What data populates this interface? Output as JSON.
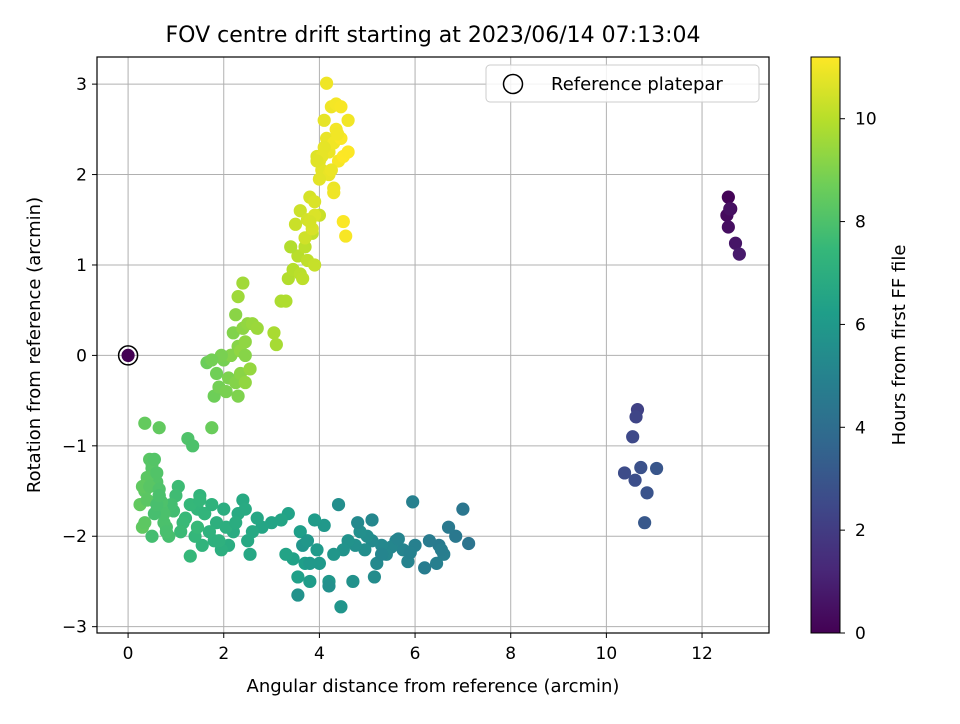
{
  "chart_data": {
    "type": "scatter",
    "title": "FOV centre drift starting at 2023/06/14 07:13:04",
    "xlabel": "Angular distance from reference (arcmin)",
    "ylabel": "Rotation from reference (arcmin)",
    "xlim": [
      -0.65,
      13.4
    ],
    "ylim": [
      -3.07,
      3.3
    ],
    "xticks": [
      0,
      2,
      4,
      6,
      8,
      10,
      12
    ],
    "yticks": [
      -3,
      -2,
      -1,
      0,
      1,
      2,
      3
    ],
    "grid": true,
    "legend": {
      "position": "top-right",
      "entries": [
        "Reference platepar"
      ]
    },
    "reference_point": {
      "x": 0,
      "y": 0
    },
    "colorbar": {
      "label": "Hours from first FF file",
      "colormap": "viridis",
      "range": [
        0,
        11.2
      ],
      "ticks": [
        0,
        2,
        4,
        6,
        8,
        10
      ]
    },
    "colormap_stops": [
      "#440154",
      "#482878",
      "#3e4989",
      "#31688e",
      "#26828e",
      "#1f9e89",
      "#35b779",
      "#6ece58",
      "#b5de2b",
      "#fde725"
    ],
    "series": [
      {
        "x": [
          12.55,
          12.6,
          12.52,
          12.55,
          12.58,
          12.7,
          12.78
        ],
        "y": [
          1.75,
          1.62,
          1.55,
          1.42,
          1.62,
          1.24,
          1.12
        ],
        "c": [
          0.1,
          0.2,
          0.3,
          0.4,
          0.5,
          0.65,
          0.8
        ]
      },
      {
        "x": [
          10.65,
          10.62,
          10.55,
          10.38,
          10.6,
          10.72,
          10.85,
          11.05,
          10.8
        ],
        "y": [
          -0.6,
          -0.68,
          -0.9,
          -1.3,
          -1.38,
          -1.24,
          -1.52,
          -1.25,
          -1.85
        ],
        "c": [
          2.2,
          2.35,
          2.5,
          2.6,
          2.7,
          2.8,
          2.9,
          3.0,
          3.1
        ]
      },
      {
        "x": [
          7.12,
          7.0,
          6.85,
          6.7,
          6.5,
          6.3,
          6.2,
          6.6,
          6.45,
          5.95,
          5.85,
          5.75,
          5.6,
          5.5,
          5.4,
          5.3,
          5.2,
          5.1,
          5.15,
          5.0,
          4.95,
          4.85,
          4.75,
          4.7,
          4.6,
          4.5,
          4.45,
          4.3,
          4.2,
          4.1,
          4.0,
          3.95,
          3.9,
          3.8,
          3.7,
          3.6,
          3.55,
          3.45,
          3.35,
          3.3,
          3.2,
          3.55,
          3.65,
          3.75,
          3.8,
          4.2,
          4.4,
          4.8,
          5.1,
          5.3,
          6.0,
          5.9,
          5.65,
          6.55
        ],
        "y": [
          -2.08,
          -1.7,
          -2.0,
          -1.9,
          -2.1,
          -2.05,
          -2.35,
          -2.2,
          -2.3,
          -1.62,
          -2.28,
          -2.15,
          -2.05,
          -2.12,
          -2.2,
          -2.1,
          -2.3,
          -2.05,
          -2.45,
          -2.0,
          -2.15,
          -1.95,
          -2.1,
          -2.5,
          -2.05,
          -2.15,
          -2.78,
          -2.2,
          -2.5,
          -1.88,
          -2.3,
          -2.15,
          -1.82,
          -2.5,
          -2.3,
          -1.95,
          -2.45,
          -2.25,
          -1.75,
          -2.2,
          -1.82,
          -2.65,
          -2.1,
          -2.05,
          -2.3,
          -2.55,
          -1.65,
          -1.85,
          -1.82,
          -2.2,
          -2.1,
          -2.18,
          -2.03,
          -2.15
        ],
        "c": [
          4.3,
          4.4,
          4.5,
          4.55,
          4.6,
          4.65,
          4.7,
          4.8,
          4.85,
          4.9,
          5.0,
          5.05,
          5.1,
          5.15,
          5.2,
          5.25,
          5.3,
          5.35,
          5.4,
          5.45,
          5.5,
          5.55,
          5.6,
          5.65,
          5.7,
          5.75,
          5.8,
          5.85,
          5.9,
          5.95,
          6.0,
          6.05,
          6.1,
          6.15,
          6.2,
          6.25,
          6.3,
          6.35,
          6.4,
          6.45,
          6.5,
          5.7,
          5.8,
          5.9,
          6.0,
          5.6,
          5.5,
          5.3,
          5.2,
          5.1,
          4.9,
          4.95,
          5.05,
          4.75
        ]
      },
      {
        "x": [
          3.0,
          2.8,
          2.7,
          2.55,
          2.5,
          2.4,
          2.3,
          2.2,
          2.1,
          2.0,
          1.95,
          1.85,
          1.8,
          1.7,
          1.6,
          1.55,
          1.5,
          1.45,
          1.4,
          1.3,
          1.2,
          1.15,
          1.1,
          1.05,
          1.0,
          0.95,
          0.9,
          0.85,
          0.8,
          0.75,
          0.7,
          0.65,
          0.6,
          0.55,
          0.5,
          0.45,
          0.4,
          0.35,
          0.3,
          0.25,
          0.3,
          0.35,
          0.4,
          0.45,
          0.5,
          0.55,
          0.6,
          0.65,
          0.7,
          0.75,
          0.8,
          0.5,
          0.55,
          0.6,
          0.65,
          1.25,
          1.35,
          1.45,
          1.5,
          1.6,
          1.75,
          1.9,
          2.05,
          2.25,
          2.45,
          2.6,
          1.3,
          0.35,
          0.65
        ],
        "y": [
          -1.85,
          -1.9,
          -1.8,
          -2.2,
          -2.05,
          -1.6,
          -1.75,
          -1.95,
          -2.1,
          -1.7,
          -2.15,
          -1.85,
          -2.05,
          -1.95,
          -1.75,
          -2.1,
          -1.55,
          -1.7,
          -2.0,
          -1.65,
          -1.8,
          -1.85,
          -1.95,
          -1.45,
          -1.55,
          -1.72,
          -1.65,
          -2.0,
          -1.9,
          -1.85,
          -1.7,
          -1.55,
          -1.4,
          -1.3,
          -1.25,
          -1.15,
          -1.35,
          -1.5,
          -1.45,
          -1.65,
          -1.9,
          -1.85,
          -1.6,
          -1.45,
          -1.2,
          -1.15,
          -1.3,
          -1.48,
          -1.62,
          -1.75,
          -1.95,
          -2.0,
          -1.75,
          -1.65,
          -1.55,
          -0.92,
          -1.0,
          -1.9,
          -1.6,
          -1.75,
          -1.65,
          -2.05,
          -1.9,
          -1.85,
          -1.7,
          -1.95,
          -2.22,
          -0.75,
          -0.8
        ],
        "c": [
          6.5,
          6.55,
          6.6,
          6.65,
          6.7,
          6.75,
          6.8,
          6.85,
          6.9,
          6.95,
          7.0,
          7.05,
          7.1,
          7.15,
          7.2,
          7.25,
          7.3,
          7.35,
          7.4,
          7.45,
          7.5,
          7.55,
          7.6,
          7.65,
          7.7,
          7.75,
          7.8,
          7.85,
          7.9,
          7.95,
          8.0,
          8.05,
          8.1,
          8.15,
          8.2,
          8.25,
          8.3,
          8.35,
          8.4,
          8.45,
          8.4,
          8.35,
          8.3,
          8.25,
          8.2,
          8.15,
          8.1,
          8.05,
          8.0,
          7.95,
          7.9,
          7.8,
          7.85,
          7.9,
          7.95,
          8.05,
          8.0,
          7.5,
          7.4,
          7.3,
          7.2,
          7.1,
          7.0,
          6.9,
          6.8,
          6.7,
          7.45,
          8.5,
          8.45
        ]
      },
      {
        "x": [
          1.75,
          1.65,
          1.8,
          1.85,
          1.9,
          2.0,
          2.05,
          2.1,
          2.15,
          2.2,
          2.25,
          2.3,
          2.35,
          2.4,
          2.45,
          2.5,
          2.55,
          2.6,
          2.7,
          2.3,
          2.4,
          2.25,
          2.15,
          2.35,
          2.45,
          1.95,
          1.75,
          3.1,
          3.05,
          3.2,
          3.3,
          3.35,
          3.45,
          3.55,
          3.6,
          3.7,
          3.75,
          3.85,
          3.9,
          4.0,
          2.45,
          2.3,
          3.4,
          3.65
        ],
        "y": [
          -0.8,
          -0.08,
          -0.45,
          -0.2,
          -0.35,
          -0.05,
          -0.4,
          -0.25,
          0.0,
          0.25,
          -0.3,
          0.1,
          -0.2,
          0.3,
          0.15,
          0.35,
          -0.15,
          0.35,
          0.3,
          0.65,
          0.8,
          0.45,
          0.0,
          0.05,
          -0.3,
          0.0,
          -0.05,
          0.12,
          0.25,
          0.6,
          0.6,
          0.85,
          0.95,
          1.1,
          0.9,
          1.2,
          1.05,
          1.35,
          1.0,
          1.55,
          0.0,
          -0.45,
          1.2,
          0.85
        ],
        "c": [
          8.6,
          8.65,
          8.7,
          8.75,
          8.8,
          8.85,
          8.9,
          8.95,
          9.0,
          9.05,
          9.1,
          9.15,
          9.2,
          9.25,
          9.3,
          9.35,
          9.4,
          9.45,
          9.5,
          9.55,
          9.6,
          9.2,
          9.1,
          9.3,
          9.35,
          8.9,
          8.8,
          9.7,
          9.75,
          9.8,
          9.85,
          9.9,
          9.95,
          10.0,
          10.05,
          10.1,
          10.15,
          10.2,
          10.25,
          10.3,
          9.15,
          9.0,
          9.9,
          10.1
        ]
      },
      {
        "x": [
          3.5,
          3.6,
          3.7,
          3.75,
          3.8,
          3.85,
          3.9,
          3.95,
          4.0,
          4.05,
          4.1,
          4.15,
          4.2,
          4.25,
          4.3,
          4.35,
          4.4,
          4.45,
          4.5,
          4.55,
          4.6,
          4.3,
          4.2,
          4.1,
          4.0,
          3.9,
          3.8,
          4.15,
          4.35,
          4.45,
          4.25,
          4.05,
          3.95,
          4.5,
          4.38,
          4.6,
          4.3
        ],
        "y": [
          1.45,
          1.6,
          1.3,
          1.5,
          1.75,
          1.4,
          1.55,
          2.2,
          2.15,
          2.05,
          2.6,
          2.4,
          2.25,
          2.75,
          2.35,
          2.5,
          2.15,
          2.4,
          2.2,
          1.32,
          2.6,
          1.85,
          2.0,
          2.3,
          1.95,
          1.7,
          1.48,
          3.01,
          2.78,
          2.75,
          2.05,
          2.2,
          2.15,
          1.48,
          2.45,
          2.25,
          1.8
        ],
        "c": [
          10.3,
          10.35,
          10.4,
          10.45,
          10.5,
          10.55,
          10.6,
          10.65,
          10.7,
          10.75,
          10.8,
          10.85,
          10.9,
          10.95,
          11.0,
          11.05,
          11.1,
          11.15,
          11.2,
          11.1,
          11.0,
          10.9,
          10.85,
          10.8,
          10.75,
          10.6,
          10.5,
          10.95,
          11.05,
          11.1,
          10.9,
          10.8,
          10.7,
          11.15,
          11.0,
          11.18,
          10.95
        ]
      }
    ]
  }
}
